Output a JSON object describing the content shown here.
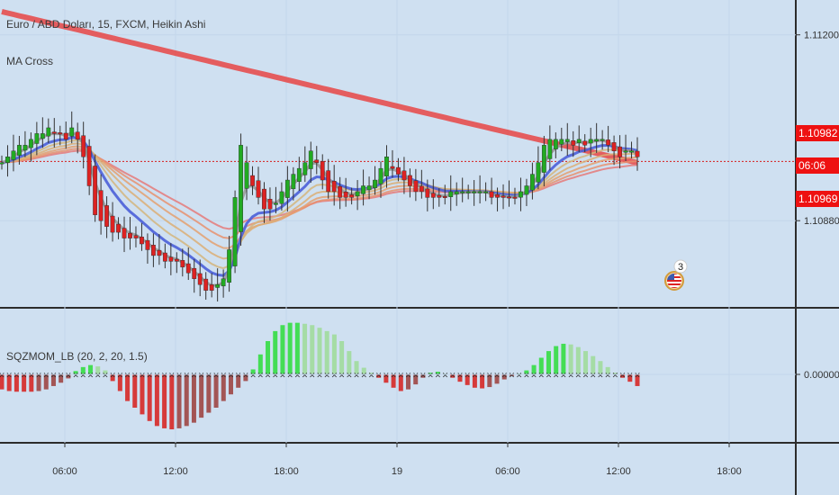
{
  "header": {
    "symbol_line": "Euro / ABD Doları, 15, FXCM, Heikin Ashi",
    "indicator_label": "MA Cross"
  },
  "oscillator": {
    "label": "SQZMOM_LB (20, 2, 20, 1.5)"
  },
  "price_tags": {
    "last_price": "1.10982",
    "countdown": "06:06",
    "ma_price": "1.10969"
  },
  "event_badge": {
    "count": "3"
  },
  "colors": {
    "background": "#cfe0f1",
    "bull_candle": "#22aa22",
    "bear_candle": "#dd2222",
    "ma_slow": "#e84545",
    "ma_fast": "#4a5fd8",
    "ma_grey": "#9a9a9a",
    "momentum_up_strong": "#44dd55",
    "momentum_up_weak": "#a5dca5",
    "momentum_down_strong": "#d63a3a",
    "momentum_down_weak": "#a35555",
    "price_line": "#d81b1b"
  },
  "chart_data": [
    {
      "type": "candlestick",
      "title": "Euro / ABD Doları, 15, FXCM, Heikin Ashi",
      "x_ticks": [
        "06:00",
        "12:00",
        "18:00",
        "19",
        "06:00",
        "12:00",
        "18:00"
      ],
      "y_ticks": [
        "1.11200",
        "1.10880"
      ],
      "ylim": [
        1.1073,
        1.1126
      ],
      "last_price": 1.10982,
      "ma_price": 1.10969,
      "close": [
        1.1098,
        1.1099,
        1.11,
        1.1101,
        1.1101,
        1.1102,
        1.1103,
        1.1103,
        1.1104,
        1.1103,
        1.1103,
        1.1102,
        1.1104,
        1.1102,
        1.1099,
        1.1094,
        1.1089,
        1.1088,
        1.1087,
        1.1086,
        1.1086,
        1.1085,
        1.1085,
        1.1085,
        1.1084,
        1.1083,
        1.1082,
        1.1082,
        1.1081,
        1.1081,
        1.1081,
        1.108,
        1.1079,
        1.1078,
        1.1077,
        1.1076,
        1.1076,
        1.1077,
        1.1078,
        1.1083,
        1.1092,
        1.1101,
        1.1098,
        1.1094,
        1.1092,
        1.109,
        1.109,
        1.1091,
        1.1093,
        1.1095,
        1.1096,
        1.1097,
        1.1098,
        1.11,
        1.1098,
        1.1095,
        1.1093,
        1.1093,
        1.1092,
        1.1092,
        1.1092,
        1.1093,
        1.1094,
        1.1094,
        1.1095,
        1.1097,
        1.1099,
        1.1097,
        1.1096,
        1.1095,
        1.1094,
        1.1093,
        1.1093,
        1.1092,
        1.1092,
        1.1092,
        1.1092,
        1.1093,
        1.1093,
        1.1093,
        1.1093,
        1.1093,
        1.1093,
        1.1093,
        1.1092,
        1.1092,
        1.1092,
        1.1092,
        1.1092,
        1.1093,
        1.1094,
        1.1096,
        1.1098,
        1.1101,
        1.1102,
        1.1102,
        1.1102,
        1.1102,
        1.1101,
        1.1102,
        1.1101,
        1.1102,
        1.1102,
        1.1102,
        1.1101,
        1.11,
        1.1099,
        1.11,
        1.11,
        1.1099
      ]
    },
    {
      "type": "bar",
      "title": "SQZMOM_LB (20, 2, 20, 1.5)",
      "y_ticks": [
        "0.00000"
      ],
      "zero": 0,
      "values": [
        -0.00045,
        -0.0005,
        -0.00052,
        -0.00052,
        -0.00052,
        -0.0005,
        -0.00045,
        -0.00035,
        -0.00025,
        -0.00012,
        0.0001,
        0.00022,
        0.00028,
        0.00024,
        0.00012,
        -0.0002,
        -0.0005,
        -0.0008,
        -0.001,
        -0.0012,
        -0.0014,
        -0.00155,
        -0.00162,
        -0.00165,
        -0.00162,
        -0.00155,
        -0.00145,
        -0.0013,
        -0.00115,
        -0.001,
        -0.0008,
        -0.0006,
        -0.0004,
        -0.0002,
        0.00015,
        0.0006,
        0.001,
        0.0013,
        0.00148,
        0.00155,
        0.00155,
        0.00152,
        0.00148,
        0.0014,
        0.0013,
        0.0012,
        0.001,
        0.0007,
        0.0004,
        0.0002,
        5e-05,
        -0.0001,
        -0.00025,
        -0.0004,
        -0.0005,
        -0.00045,
        -0.0003,
        -0.0001,
        5e-05,
        8e-05,
        2e-05,
        -0.0001,
        -0.00022,
        -0.00032,
        -0.0004,
        -0.00042,
        -0.00038,
        -0.00028,
        -0.00015,
        -5e-05,
        2e-05,
        0.00012,
        0.00028,
        0.0005,
        0.0007,
        0.00085,
        0.00092,
        0.0009,
        0.00082,
        0.0007,
        0.00055,
        0.0004,
        0.00022,
        5e-05,
        -0.0001,
        -0.00022,
        -0.00035
      ]
    }
  ]
}
